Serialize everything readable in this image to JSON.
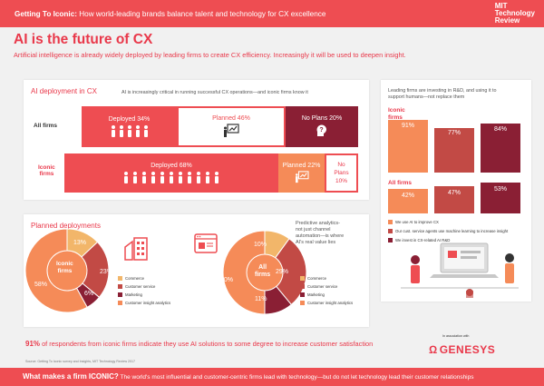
{
  "header": {
    "bold": "Getting To Iconic:",
    "light": " How world-leading brands balance talent and technology for CX excellence",
    "logo_lines": [
      "MIT",
      "Technology",
      "Review"
    ]
  },
  "title": "AI is the future of CX",
  "subtitle": "Artificial intelligence is already widely deployed by leading firms to create CX efficiency. Increasingly it will be used to deepen insight.",
  "deployment": {
    "title": "AI deployment in CX",
    "note": "AI is increasingly critical in running successful CX operations—and iconic firms know it",
    "rows": [
      {
        "label": "All firms",
        "segments": [
          "Deployed 34%",
          "Planned 46%",
          "No Plans 20%"
        ]
      },
      {
        "label": "Iconic\nfirms",
        "segments": [
          "Deployed 68%",
          "Planned 22%",
          "No\nPlans\n10%"
        ]
      }
    ],
    "colors": {
      "deployed": "#ee4d52",
      "planned": "#f58b58",
      "noplans": "#8a1f34"
    }
  },
  "planned": {
    "title": "Planned deployments",
    "note": "Predictive analytics-\nnot just channel\nautomation—is where\nAI's real value lies",
    "iconic": {
      "center": "Iconic\nfirms",
      "values": [
        "13%",
        "23%",
        "6%",
        "58%"
      ]
    },
    "all": {
      "center": "All\nfirms",
      "values": [
        "10%",
        "29%",
        "11%",
        "50%"
      ]
    },
    "legend": [
      "Commerce",
      "Customer service",
      "Marketing",
      "Customer insight analytics"
    ],
    "legend_colors": [
      "#f2b66a",
      "#c24a45",
      "#8a1f34",
      "#f58b58"
    ]
  },
  "rnd": {
    "note": "Leading firms are investing in R&D, and using it to\nsupport humans—not replace them",
    "iconic_label": "Iconic\nfirms",
    "all_label": "All firms",
    "iconic_values": [
      "91%",
      "77%",
      "84%"
    ],
    "all_values": [
      "42%",
      "47%",
      "53%"
    ],
    "bar_colors": [
      "#f58b58",
      "#c24a45",
      "#8a1f34"
    ],
    "legend": [
      "We use AI to improve CX",
      "Our cust. service agents use machine learning to increase insight",
      "We invest in CX-related AI R&D"
    ]
  },
  "stat": {
    "bold": "91%",
    "rest": " of respondents from iconic firms indicate they use AI solutions to some degree to increase customer satisfaction"
  },
  "source": "Source: Getting To Iconic survey and Insights, MIT Technology Review 2017",
  "partner": {
    "assoc": "In association with",
    "name": "GENESYS"
  },
  "footer": {
    "bold": "What makes a firm ICONIC?",
    "rest": " The world's most influential and customer-centric firms lead with technology—but do not let technology lead their customer relationships"
  }
}
